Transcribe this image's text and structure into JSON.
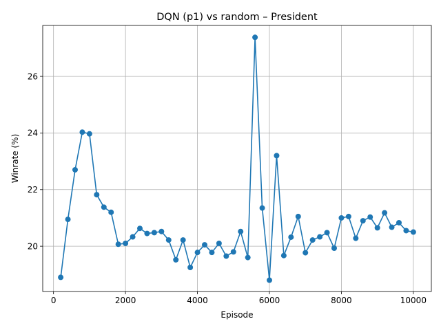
{
  "chart_data": {
    "type": "line",
    "title": "DQN (p1) vs random – President",
    "xlabel": "Episode",
    "ylabel": "Winrate (%)",
    "xlim": [
      -300,
      10500
    ],
    "ylim": [
      18.4,
      27.8
    ],
    "xticks": [
      0,
      2000,
      4000,
      6000,
      8000,
      10000
    ],
    "yticks": [
      20,
      22,
      24,
      26
    ],
    "grid": true,
    "line_color": "#1f77b4",
    "marker": "circle",
    "series": [
      {
        "x": [
          200,
          400,
          600,
          800,
          1000,
          1200,
          1400,
          1600,
          1800,
          2000,
          2200,
          2400,
          2600,
          2800,
          3000,
          3200,
          3400,
          3600,
          3800,
          4000,
          4200,
          4400,
          4600,
          4800,
          5000,
          5200,
          5400,
          5600,
          5800,
          6000,
          6200,
          6400,
          6600,
          6800,
          7000,
          7200,
          7400,
          7600,
          7800,
          8000,
          8200,
          8400,
          8600,
          8800,
          9000,
          9200,
          9400,
          9600,
          9800,
          10000
        ],
        "y": [
          18.9,
          20.95,
          22.7,
          24.03,
          23.97,
          21.82,
          21.38,
          21.2,
          20.07,
          20.1,
          20.33,
          20.63,
          20.45,
          20.48,
          20.52,
          20.22,
          19.52,
          20.22,
          19.25,
          19.78,
          20.05,
          19.78,
          20.1,
          19.65,
          19.8,
          20.52,
          19.6,
          27.38,
          21.35,
          18.8,
          23.2,
          19.67,
          20.32,
          21.05,
          19.77,
          20.22,
          20.33,
          20.48,
          19.93,
          21.0,
          21.05,
          20.28,
          20.9,
          21.03,
          20.65,
          21.18,
          20.67,
          20.83,
          20.55,
          20.5
        ]
      }
    ]
  }
}
